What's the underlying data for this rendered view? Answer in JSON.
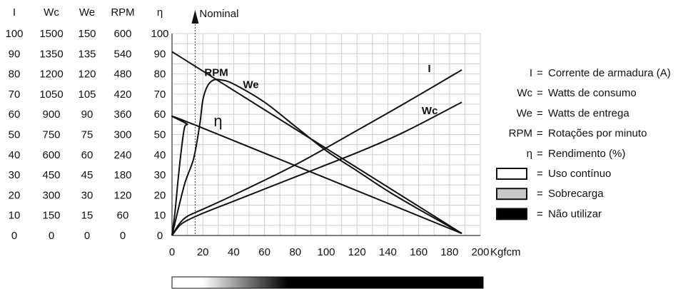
{
  "chart_data": {
    "type": "line",
    "column_headers": [
      "I",
      "Wc",
      "We",
      "RPM",
      "η"
    ],
    "scale_columns": [
      {
        "name": "I",
        "values": [
          100,
          90,
          80,
          70,
          60,
          50,
          40,
          30,
          20,
          10,
          0
        ]
      },
      {
        "name": "Wc",
        "values": [
          1500,
          1350,
          1200,
          1050,
          900,
          750,
          600,
          450,
          300,
          150,
          0
        ]
      },
      {
        "name": "We",
        "values": [
          150,
          135,
          120,
          105,
          90,
          75,
          60,
          45,
          30,
          15,
          0
        ]
      },
      {
        "name": "RPM",
        "values": [
          600,
          540,
          480,
          420,
          360,
          300,
          240,
          180,
          120,
          60,
          0
        ]
      },
      {
        "name": "η",
        "values": [
          100,
          90,
          80,
          70,
          60,
          50,
          40,
          30,
          20,
          10,
          0
        ]
      }
    ],
    "x_ticks": [
      0,
      20,
      40,
      60,
      80,
      100,
      120,
      140,
      160,
      180,
      200
    ],
    "xlabel": "Kgfcm",
    "xlim": [
      0,
      200
    ],
    "ylim": [
      0,
      100
    ],
    "grid": true,
    "annotation": {
      "label": "Nominal",
      "x": 15
    },
    "series": [
      {
        "name": "I",
        "label": "I",
        "points": [
          [
            0,
            0
          ],
          [
            5,
            6
          ],
          [
            10,
            9.5
          ],
          [
            20,
            13
          ],
          [
            40,
            20
          ],
          [
            80,
            35
          ],
          [
            120,
            52
          ],
          [
            150,
            65
          ],
          [
            188,
            82
          ]
        ]
      },
      {
        "name": "Wc",
        "label": "Wc",
        "points": [
          [
            0,
            0
          ],
          [
            5,
            5
          ],
          [
            10,
            7.5
          ],
          [
            20,
            11
          ],
          [
            40,
            17
          ],
          [
            80,
            29
          ],
          [
            120,
            41
          ],
          [
            150,
            51
          ],
          [
            188,
            66
          ]
        ]
      },
      {
        "name": "We",
        "label": "We",
        "points": [
          [
            0,
            0
          ],
          [
            8,
            25
          ],
          [
            14,
            38
          ],
          [
            18,
            55
          ],
          [
            20,
            67
          ],
          [
            23,
            74
          ],
          [
            27,
            77
          ],
          [
            32,
            77
          ],
          [
            40,
            75
          ],
          [
            60,
            66
          ],
          [
            80,
            54
          ],
          [
            100,
            42
          ],
          [
            120,
            32
          ],
          [
            140,
            22
          ],
          [
            160,
            13
          ],
          [
            188,
            1
          ]
        ]
      },
      {
        "name": "RPM",
        "label": "RPM",
        "points": [
          [
            0,
            91
          ],
          [
            188,
            1
          ]
        ]
      },
      {
        "name": "η",
        "label": "η",
        "points": [
          [
            0,
            0
          ],
          [
            2,
            12
          ],
          [
            4,
            28
          ],
          [
            6,
            42
          ],
          [
            8,
            53
          ],
          [
            10,
            55
          ],
          [
            14,
            55
          ],
          [
            188,
            1
          ]
        ]
      }
    ],
    "legend": {
      "position": "right",
      "items": [
        {
          "symbol": "I",
          "text": "Corrente de armadura (A)"
        },
        {
          "symbol": "Wc",
          "text": "Watts de consumo"
        },
        {
          "symbol": "We",
          "text": "Watts de entrega"
        },
        {
          "symbol": "RPM",
          "text": "Rotações por minuto"
        },
        {
          "symbol": "η",
          "text": "Rendimento (%)"
        },
        {
          "swatch": "#ffffff",
          "text": "Uso contínuo"
        },
        {
          "swatch": "#c8c8c8",
          "text": "Sobrecarga"
        },
        {
          "swatch": "#000000",
          "text": "Não utilizar"
        }
      ]
    },
    "usage_band": {
      "white_to": 20,
      "gradient_to": 75,
      "black_to": 200,
      "colors": [
        "#ffffff",
        "#000000"
      ]
    }
  }
}
